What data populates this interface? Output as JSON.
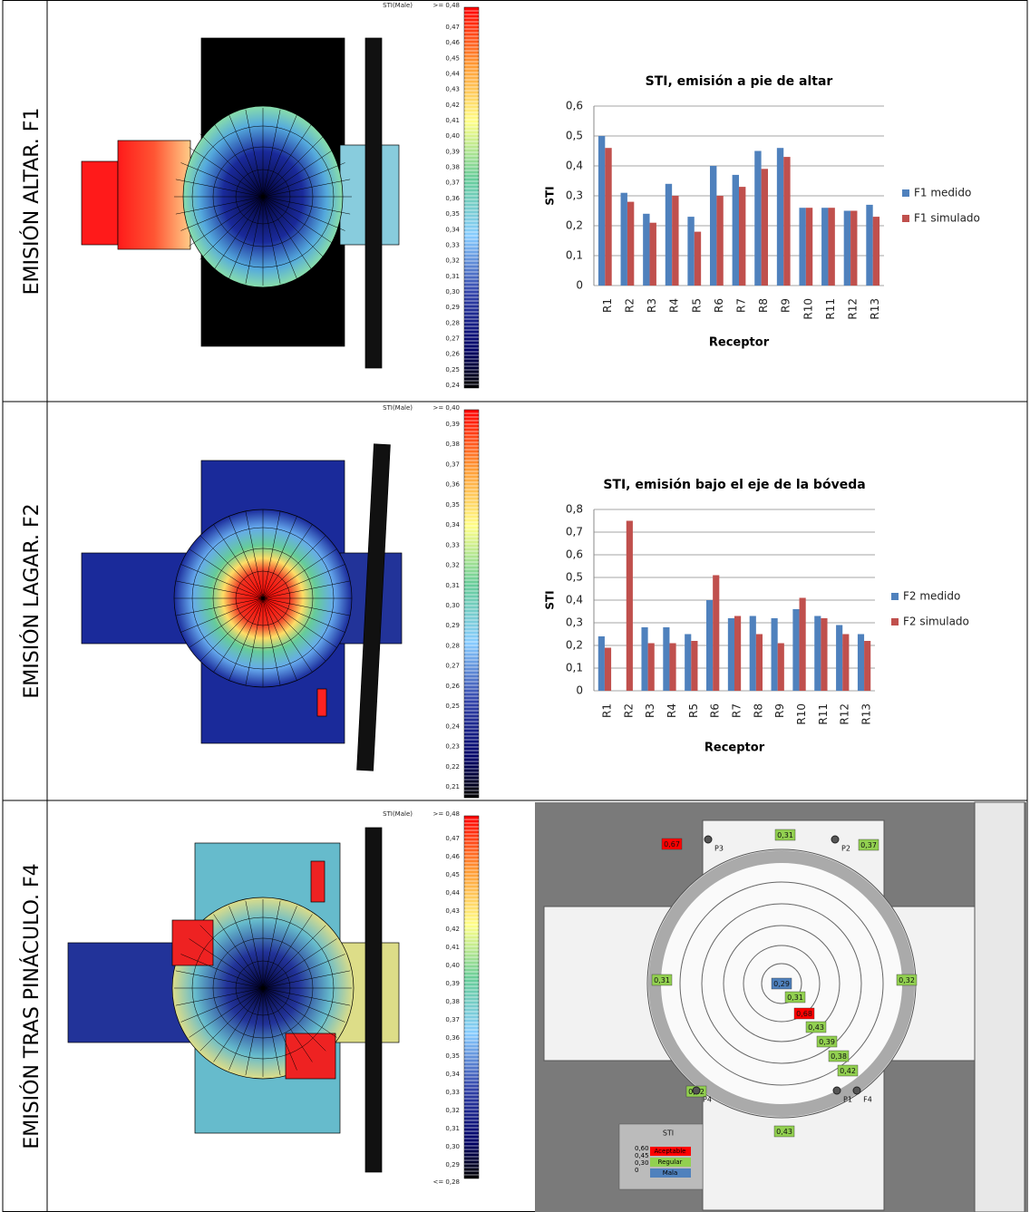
{
  "table": {
    "rows": [
      {
        "label": "EMISIÓN ALTAR. F1",
        "scale": {
          "title": "STI(Male)",
          "top": ">= 0,48",
          "ticks": [
            "0,47",
            "0,46",
            "0,45",
            "0,44",
            "0,43",
            "0,42",
            "0,41",
            "0,40",
            "0,39",
            "0,38",
            "0,37",
            "0,36",
            "0,35",
            "0,34",
            "0,33",
            "0,32",
            "0,31",
            "0,30",
            "0,29",
            "0,28",
            "0,27",
            "0,26",
            "0,25",
            "0,24"
          ]
        }
      },
      {
        "label": "EMISIÓN LAGAR. F2",
        "scale": {
          "title": "STI(Male)",
          "top": ">= 0,40",
          "ticks": [
            "0,39",
            "0,38",
            "0,37",
            "0,36",
            "0,35",
            "0,34",
            "0,33",
            "0,32",
            "0,31",
            "0,30",
            "0,29",
            "0,28",
            "0,27",
            "0,26",
            "0,25",
            "0,24",
            "0,23",
            "0,22",
            "0,21"
          ]
        }
      },
      {
        "label": "EMISIÓN TRAS PINÁCULO. F4",
        "scale": {
          "title": "STI(Male)",
          "top": ">= 0,48",
          "ticks": [
            "0,47",
            "0,46",
            "0,45",
            "0,44",
            "0,43",
            "0,42",
            "0,41",
            "0,40",
            "0,39",
            "0,38",
            "0,37",
            "0,36",
            "0,35",
            "0,34",
            "0,33",
            "0,32",
            "0,31",
            "0,30",
            "0,29"
          ],
          "bottom": "<= 0,28"
        }
      }
    ]
  },
  "chart_data": [
    {
      "type": "bar",
      "title": "STI, emisión a pie de altar",
      "y_label": "STI",
      "x_label": "Receptor",
      "categories": [
        "R1",
        "R2",
        "R3",
        "R4",
        "R5",
        "R6",
        "R7",
        "R8",
        "R9",
        "R10",
        "R11",
        "R12",
        "R13"
      ],
      "series": [
        {
          "name": "F1 medido",
          "color": "#4f81bd",
          "values": [
            0.5,
            0.31,
            0.24,
            0.34,
            0.23,
            0.4,
            0.37,
            0.45,
            0.46,
            0.26,
            0.26,
            0.25,
            0.27
          ]
        },
        {
          "name": "F1 simulado",
          "color": "#c0504d",
          "values": [
            0.46,
            0.28,
            0.21,
            0.3,
            0.18,
            0.3,
            0.33,
            0.39,
            0.43,
            0.26,
            0.26,
            0.25,
            0.23
          ]
        }
      ],
      "ylim": [
        0,
        0.6
      ],
      "yticks": [
        0,
        {
          "value": 0.1,
          "label": "0,1"
        },
        {
          "value": 0.2,
          "label": "0,2"
        },
        {
          "value": 0.3,
          "label": "0,3"
        },
        {
          "value": 0.4,
          "label": "0,4"
        },
        {
          "value": 0.5,
          "label": "0,5"
        },
        {
          "value": 0.6,
          "label": "0,6"
        }
      ],
      "grid": true
    },
    {
      "type": "bar",
      "title": "STI, emisión bajo el eje de la bóveda",
      "y_label": "STI",
      "x_label": "Receptor",
      "categories": [
        "R1",
        "R2",
        "R3",
        "R4",
        "R5",
        "R6",
        "R7",
        "R8",
        "R9",
        "R10",
        "R11",
        "R12",
        "R13"
      ],
      "series": [
        {
          "name": "F2 medido",
          "color": "#4f81bd",
          "values": [
            0.24,
            null,
            0.28,
            0.28,
            0.25,
            0.4,
            0.32,
            0.33,
            0.32,
            0.36,
            0.33,
            0.29,
            0.25
          ]
        },
        {
          "name": "F2 simulado",
          "color": "#c0504d",
          "values": [
            0.19,
            0.75,
            0.21,
            0.21,
            0.22,
            0.51,
            0.33,
            0.25,
            0.21,
            0.41,
            0.32,
            0.25,
            0.22
          ]
        }
      ],
      "ylim": [
        0,
        0.8
      ],
      "yticks": [
        0,
        {
          "value": 0.1,
          "label": "0,1"
        },
        {
          "value": 0.2,
          "label": "0,2"
        },
        {
          "value": 0.3,
          "label": "0,3"
        },
        {
          "value": 0.4,
          "label": "0,4"
        },
        {
          "value": 0.5,
          "label": "0,5"
        },
        {
          "value": 0.6,
          "label": "0,6"
        },
        {
          "value": 0.7,
          "label": "0,7"
        },
        {
          "value": 0.8,
          "label": "0,8"
        }
      ],
      "grid": true
    }
  ],
  "plan": {
    "tags": [
      {
        "label": "0,31",
        "color": "#92d050"
      },
      {
        "label": "0,67",
        "color": "#ff0000"
      },
      {
        "label": "0,37",
        "color": "#92d050"
      },
      {
        "label": "0,31",
        "color": "#92d050"
      },
      {
        "label": "0,29",
        "color": "#4f81bd"
      },
      {
        "label": "0,31",
        "color": "#92d050"
      },
      {
        "label": "0,68",
        "color": "#ff0000"
      },
      {
        "label": "0,43",
        "color": "#92d050"
      },
      {
        "label": "0,39",
        "color": "#92d050"
      },
      {
        "label": "0,38",
        "color": "#92d050"
      },
      {
        "label": "0,42",
        "color": "#92d050"
      },
      {
        "label": "0,42",
        "color": "#92d050"
      },
      {
        "label": "0,32",
        "color": "#92d050"
      },
      {
        "label": "0,43",
        "color": "#92d050"
      }
    ],
    "points": [
      "P3",
      "P2",
      "P4",
      "P1",
      "F4"
    ],
    "legend": {
      "title": "STI",
      "levels": [
        "0,60",
        "0,45",
        "0,30",
        "0"
      ],
      "items": [
        {
          "label": "Aceptable",
          "color": "#ff0000"
        },
        {
          "label": "Regular",
          "color": "#92d050"
        },
        {
          "label": "Mala",
          "color": "#4f81bd"
        }
      ]
    }
  }
}
